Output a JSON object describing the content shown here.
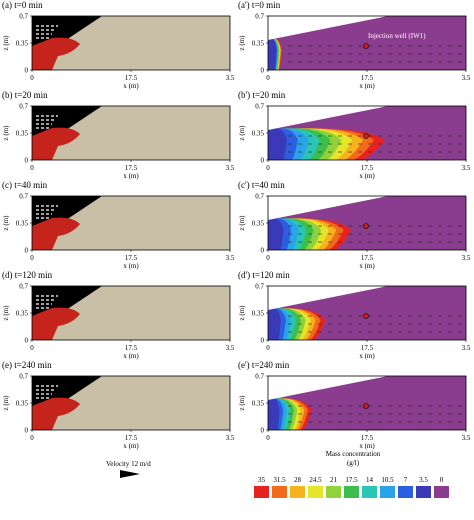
{
  "chart_data": {
    "type": "heatmap",
    "panels": [
      {
        "label": "(a) t=0 min",
        "side": "left"
      },
      {
        "label": "(a') t=0 min",
        "side": "right",
        "annotation": "Injection well (IW1)",
        "plume_extent": 0.03
      },
      {
        "label": "(b) t=20 min",
        "side": "left"
      },
      {
        "label": "(b') t=20 min",
        "side": "right",
        "plume_extent": 0.55
      },
      {
        "label": "(c) t=40 min",
        "side": "left"
      },
      {
        "label": "(c') t=40 min",
        "side": "right",
        "plume_extent": 0.38
      },
      {
        "label": "(d) t=120 min",
        "side": "left"
      },
      {
        "label": "(d') t=120 min",
        "side": "right",
        "plume_extent": 0.25
      },
      {
        "label": "(e) t=240 min",
        "side": "left"
      },
      {
        "label": "(e') t=240 min",
        "side": "right",
        "plume_extent": 0.18
      }
    ],
    "xlabel": "x (m)",
    "ylabel": "z (m)",
    "xticks": [
      "0",
      "17.5",
      "3.5"
    ],
    "yticks": [
      "0.7",
      "0.35",
      "0"
    ],
    "velocity_label": "Velocity 12 m/d",
    "colorbar": {
      "title": "Mass concentration",
      "unit": "(g/l)",
      "values": [
        "35",
        "31.5",
        "28",
        "24.5",
        "21",
        "17.5",
        "14",
        "10.5",
        "7",
        "3.5",
        "0"
      ],
      "colors": [
        "#e8231f",
        "#f26b1d",
        "#f7b21d",
        "#e5e52a",
        "#8fd23a",
        "#3cbf4a",
        "#29c6b8",
        "#2aa3e8",
        "#2c5ee0",
        "#3a3ab8",
        "#8a3d8f"
      ]
    }
  }
}
